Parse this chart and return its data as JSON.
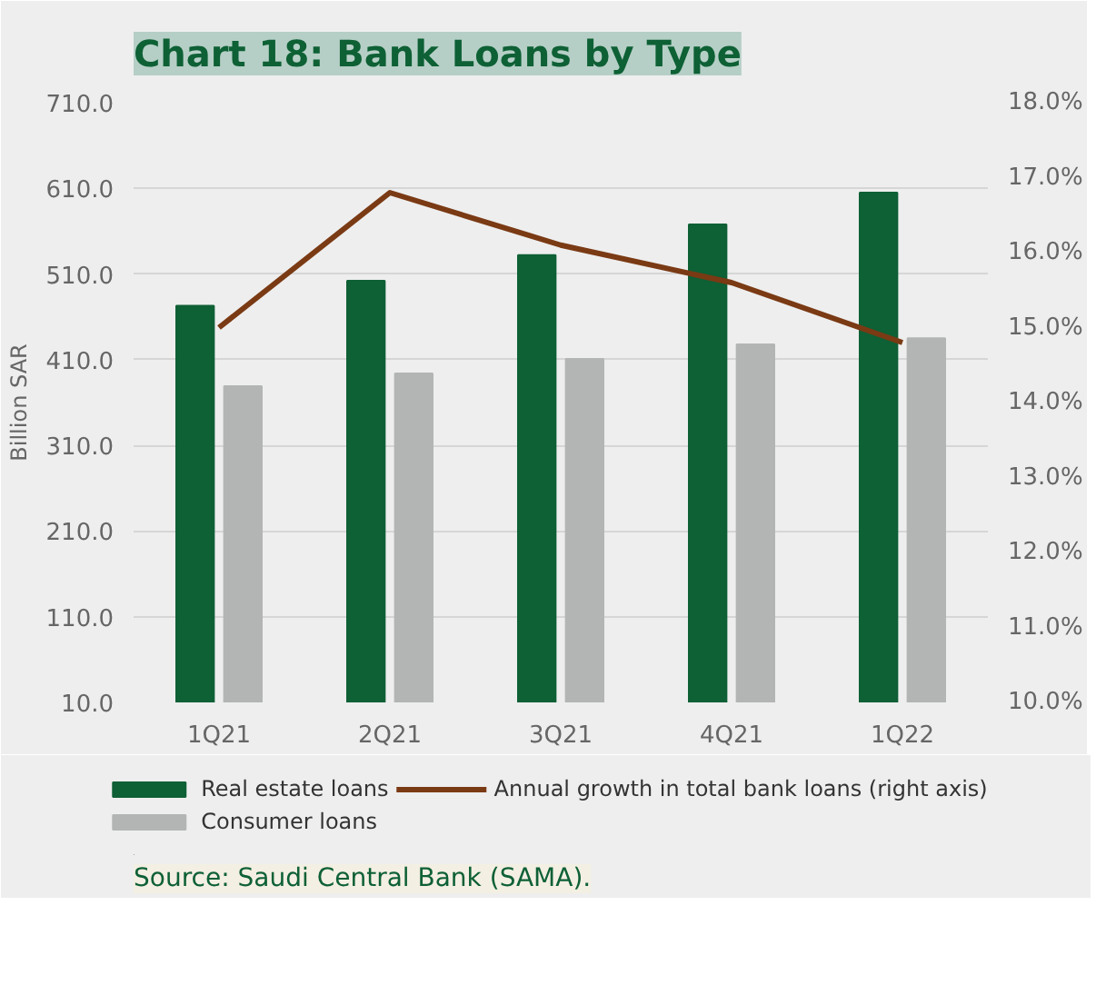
{
  "chart_data": {
    "type": "bar",
    "title": "Chart 18: Bank Loans by Type",
    "ylabel": "Billion SAR",
    "categories": [
      "1Q21",
      "2Q21",
      "3Q21",
      "4Q21",
      "1Q22"
    ],
    "series": [
      {
        "name": "Real estate loans",
        "color": "#0e6035",
        "values": [
          473,
          502,
          532,
          568,
          605
        ]
      },
      {
        "name": "Consumer loans",
        "color": "#b3b5b5",
        "values": [
          379,
          394,
          411,
          428,
          435
        ]
      },
      {
        "name": "Annual growth in total bank loans (right axis)",
        "type": "line",
        "axis": "y2",
        "color": "#7a3a14",
        "values": [
          15.0,
          16.8,
          16.1,
          15.6,
          14.8
        ]
      }
    ],
    "ylim": [
      10,
      710
    ],
    "yticks": [
      {
        "value": 10,
        "label": "10.0"
      },
      {
        "value": 110,
        "label": "110.0"
      },
      {
        "value": 210,
        "label": "210.0"
      },
      {
        "value": 310,
        "label": "310.0"
      },
      {
        "value": 410,
        "label": "410.0"
      },
      {
        "value": 510,
        "label": "510.0"
      },
      {
        "value": 610,
        "label": "610.0"
      },
      {
        "value": 710,
        "label": "710.0"
      }
    ],
    "y2lim": [
      10,
      18
    ],
    "y2ticks": [
      {
        "value": 10,
        "label": "10.0%"
      },
      {
        "value": 11,
        "label": "11.0%"
      },
      {
        "value": 12,
        "label": "12.0%"
      },
      {
        "value": 13,
        "label": "13.0%"
      },
      {
        "value": 14,
        "label": "14.0%"
      },
      {
        "value": 15,
        "label": "15.0%"
      },
      {
        "value": 16,
        "label": "16.0%"
      },
      {
        "value": 17,
        "label": "17.0%"
      },
      {
        "value": 18,
        "label": "18.0%"
      }
    ],
    "grid": "y",
    "legend": "bottom",
    "annotations": [
      "Source: Saudi Central Bank (SAMA)."
    ]
  }
}
